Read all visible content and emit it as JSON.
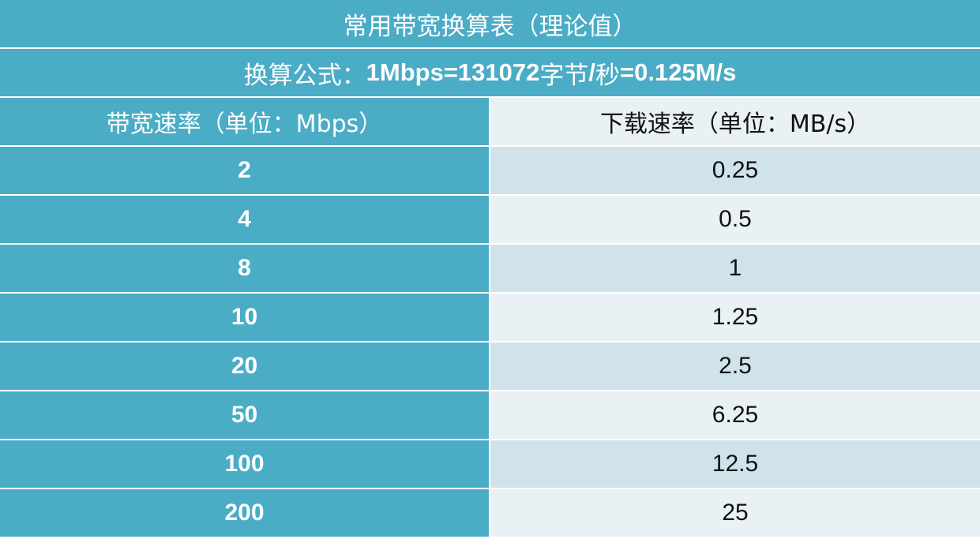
{
  "title": "常用带宽换算表（理论值）",
  "formula": {
    "prefix": "换算公式：",
    "expr1": "1Mbps=131072",
    "unit1": "字节",
    "expr2": "/",
    "unit2": "秒",
    "expr3": "=0.125M/s"
  },
  "columns": {
    "left": "带宽速率（单位：Mbps）",
    "right": "下载速率（单位：MB/s）"
  },
  "rows": [
    {
      "bandwidth": "2",
      "download": "0.25"
    },
    {
      "bandwidth": "4",
      "download": "0.5"
    },
    {
      "bandwidth": "8",
      "download": "1"
    },
    {
      "bandwidth": "10",
      "download": "1.25"
    },
    {
      "bandwidth": "20",
      "download": "2.5"
    },
    {
      "bandwidth": "50",
      "download": "6.25"
    },
    {
      "bandwidth": "100",
      "download": "12.5"
    },
    {
      "bandwidth": "200",
      "download": "25"
    }
  ],
  "colors": {
    "header_bg": "#4bacc6",
    "row_shade_a": "#d0e3ea",
    "row_shade_b": "#e9f1f5"
  }
}
